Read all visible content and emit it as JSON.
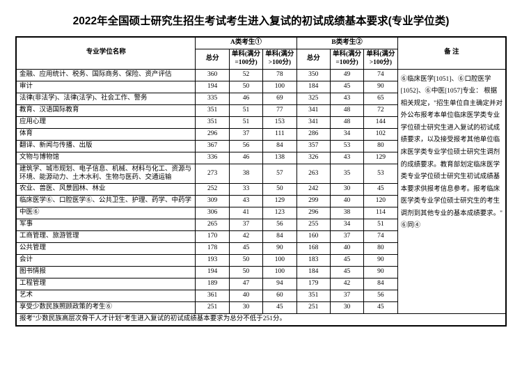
{
  "title": "2022年全国硕士研究生招生考试考生进入复试的初试成绩基本要求(专业学位类)",
  "header": {
    "major": "专业学位名称",
    "groupA": "A类考生①",
    "groupB": "B类考生②",
    "total": "总分",
    "single100": "单科(满分=100分)",
    "singleGt100": "单科(满分>100分)",
    "notes": "备  注"
  },
  "rows": [
    {
      "name": "金融、应用统计、税务、国际商务、保险、资产评估",
      "a": [
        "360",
        "52",
        "78"
      ],
      "b": [
        "350",
        "49",
        "74"
      ]
    },
    {
      "name": "审计",
      "a": [
        "194",
        "50",
        "100"
      ],
      "b": [
        "184",
        "45",
        "90"
      ]
    },
    {
      "name": "法律(非法学)、法律(法学)、社会工作、警务",
      "a": [
        "335",
        "46",
        "69"
      ],
      "b": [
        "325",
        "43",
        "65"
      ]
    },
    {
      "name": "教育、汉语国际教育",
      "a": [
        "351",
        "51",
        "77"
      ],
      "b": [
        "341",
        "48",
        "72"
      ]
    },
    {
      "name": "应用心理",
      "a": [
        "351",
        "51",
        "153"
      ],
      "b": [
        "341",
        "48",
        "144"
      ]
    },
    {
      "name": "体育",
      "a": [
        "296",
        "37",
        "111"
      ],
      "b": [
        "286",
        "34",
        "102"
      ]
    },
    {
      "name": "翻译、新闻与传播、出版",
      "a": [
        "367",
        "56",
        "84"
      ],
      "b": [
        "357",
        "53",
        "80"
      ]
    },
    {
      "name": "文物与博物馆",
      "a": [
        "336",
        "46",
        "138"
      ],
      "b": [
        "326",
        "43",
        "129"
      ]
    },
    {
      "name": "建筑学、城市规划、电子信息、机械、材料与化工、资源与环境、能源动力、土木水利、生物与医药、交通运输",
      "a": [
        "273",
        "38",
        "57"
      ],
      "b": [
        "263",
        "35",
        "53"
      ]
    },
    {
      "name": "农业、兽医、风景园林、林业",
      "a": [
        "252",
        "33",
        "50"
      ],
      "b": [
        "242",
        "30",
        "45"
      ]
    },
    {
      "name": "临床医学⑥、口腔医学⑥、公共卫生、护理、药学、中药学",
      "a": [
        "309",
        "43",
        "129"
      ],
      "b": [
        "299",
        "40",
        "120"
      ]
    },
    {
      "name": "中医⑥",
      "a": [
        "306",
        "41",
        "123"
      ],
      "b": [
        "296",
        "38",
        "114"
      ]
    },
    {
      "name": "军事",
      "a": [
        "265",
        "37",
        "56"
      ],
      "b": [
        "255",
        "34",
        "51"
      ]
    },
    {
      "name": "工商管理、旅游管理",
      "a": [
        "170",
        "42",
        "84"
      ],
      "b": [
        "160",
        "37",
        "74"
      ]
    },
    {
      "name": "公共管理",
      "a": [
        "178",
        "45",
        "90"
      ],
      "b": [
        "168",
        "40",
        "80"
      ]
    },
    {
      "name": "会计",
      "a": [
        "193",
        "50",
        "100"
      ],
      "b": [
        "183",
        "45",
        "90"
      ]
    },
    {
      "name": "图书情报",
      "a": [
        "194",
        "50",
        "100"
      ],
      "b": [
        "184",
        "45",
        "90"
      ]
    },
    {
      "name": "工程管理",
      "a": [
        "189",
        "47",
        "94"
      ],
      "b": [
        "179",
        "42",
        "84"
      ]
    },
    {
      "name": "艺术",
      "a": [
        "361",
        "40",
        "60"
      ],
      "b": [
        "351",
        "37",
        "56"
      ]
    },
    {
      "name": "享受少数民族照顾政策的考生⑥",
      "a": [
        "251",
        "30",
        "45"
      ],
      "b": [
        "251",
        "30",
        "45"
      ]
    }
  ],
  "notesText": "⑥临床医学[1051]、⑥口腔医学[1052]、⑥中医[1057]专业：\n根据相关规定，\"招生单位自主确定并对外公布报考本单位临床医学类专业学位硕士研究生进入复试的初试成绩要求，以及接受报考其他单位临床医学类专业学位硕士研究生调剂的成绩要求。教育部划定临床医学类专业学位硕士研究生初试成绩基本要求供报考信息参考。报考临床医学类专业学位硕士研究生的考生调剂到其他专业的基本成绩要求。\"\n⑥同④",
  "footer": "报考\"少数民族高层次骨干人才计划\"考生进入复试的初试成绩基本要求为总分不低于251分。"
}
